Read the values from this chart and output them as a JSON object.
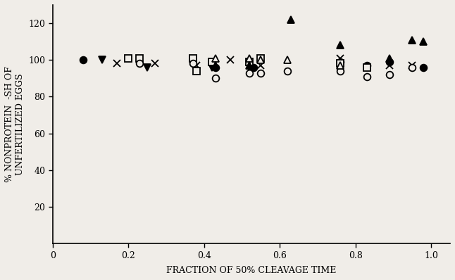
{
  "title": "",
  "xlabel": "FRACTION OF 50% CLEAVAGE TIME",
  "ylabel": "% NONPROTEIN  -SH OF\nUNFERTILIZED EGGS",
  "xlim": [
    0,
    1.05
  ],
  "ylim": [
    0,
    130
  ],
  "yticks": [
    20,
    40,
    60,
    80,
    100,
    120
  ],
  "xticks": [
    0,
    0.2,
    0.4,
    0.6,
    0.8,
    1.0
  ],
  "xtick_labels": [
    "0",
    "0.2",
    "0.4",
    "0.6",
    "0.8",
    "1.0"
  ],
  "series": [
    {
      "label": "filled_circle",
      "marker": "o",
      "filled": true,
      "points": [
        [
          0.08,
          100
        ],
        [
          0.43,
          96
        ],
        [
          0.53,
          96
        ],
        [
          0.76,
          99
        ],
        [
          0.83,
          97
        ],
        [
          0.89,
          99
        ],
        [
          0.98,
          96
        ]
      ]
    },
    {
      "label": "filled_down_triangle",
      "marker": "v",
      "filled": true,
      "points": [
        [
          0.13,
          100
        ],
        [
          0.25,
          96
        ],
        [
          0.37,
          98
        ],
        [
          0.42,
          96
        ],
        [
          0.52,
          96
        ]
      ]
    },
    {
      "label": "x_mark",
      "marker": "x",
      "filled": true,
      "points": [
        [
          0.17,
          98
        ],
        [
          0.27,
          98
        ],
        [
          0.38,
          97
        ],
        [
          0.47,
          100
        ],
        [
          0.55,
          97
        ],
        [
          0.76,
          101
        ],
        [
          0.89,
          97
        ],
        [
          0.95,
          97
        ]
      ]
    },
    {
      "label": "open_square",
      "marker": "s",
      "filled": false,
      "points": [
        [
          0.2,
          101
        ],
        [
          0.23,
          101
        ],
        [
          0.37,
          101
        ],
        [
          0.42,
          99
        ],
        [
          0.38,
          94
        ],
        [
          0.52,
          99
        ],
        [
          0.55,
          101
        ],
        [
          0.76,
          98
        ],
        [
          0.83,
          96
        ]
      ]
    },
    {
      "label": "open_circle",
      "marker": "o",
      "filled": false,
      "points": [
        [
          0.23,
          98
        ],
        [
          0.37,
          98
        ],
        [
          0.43,
          90
        ],
        [
          0.52,
          93
        ],
        [
          0.55,
          93
        ],
        [
          0.62,
          94
        ],
        [
          0.76,
          94
        ],
        [
          0.83,
          91
        ],
        [
          0.89,
          92
        ],
        [
          0.95,
          96
        ]
      ]
    },
    {
      "label": "open_triangle",
      "marker": "^",
      "filled": false,
      "points": [
        [
          0.43,
          101
        ],
        [
          0.52,
          101
        ],
        [
          0.55,
          100
        ],
        [
          0.62,
          100
        ],
        [
          0.76,
          97
        ]
      ]
    },
    {
      "label": "filled_up_triangle",
      "marker": "^",
      "filled": true,
      "points": [
        [
          0.43,
          97
        ],
        [
          0.52,
          97
        ],
        [
          0.63,
          122
        ],
        [
          0.76,
          108
        ],
        [
          0.89,
          101
        ],
        [
          0.95,
          111
        ],
        [
          0.98,
          110
        ]
      ]
    }
  ],
  "background_color": "#f0ede8",
  "marker_size": 7,
  "marker_edge_width": 1.3,
  "font_size_ticks": 9,
  "font_size_label": 9
}
